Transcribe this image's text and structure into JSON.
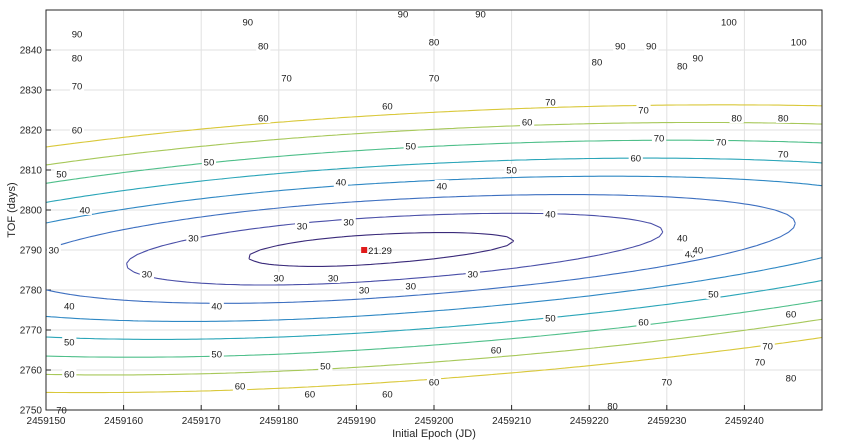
{
  "chart_data": {
    "type": "contour",
    "xlabel": "Initial Epoch (JD)",
    "ylabel": "TOF (days)",
    "xlim": [
      2459150,
      2459250
    ],
    "ylim": [
      2750,
      2850
    ],
    "x_ticks": [
      "2459150",
      "2459160",
      "2459170",
      "2459180",
      "2459190",
      "2459200",
      "2459210",
      "2459220",
      "2459230",
      "2459240"
    ],
    "y_ticks": [
      "2750",
      "2760",
      "2770",
      "2780",
      "2790",
      "2800",
      "2810",
      "2820",
      "2830",
      "2840"
    ],
    "grid": true,
    "levels": [
      30,
      40,
      50,
      60,
      70,
      80,
      90,
      100
    ],
    "level_colors": {
      "30": "#3a2a7a",
      "40": "#4a4fa8",
      "50": "#3d6fc0",
      "60": "#2f88c4",
      "70": "#2aa5b8",
      "80": "#4fbf8a",
      "90": "#a7c85a",
      "100": "#d9c83a"
    },
    "minimum": {
      "x": 2459191,
      "y": 2790,
      "value": 21.29,
      "label": "21.29",
      "marker_color": "#e01b1b"
    },
    "contour_labels": [
      {
        "text": "30",
        "x": 2459151,
        "y": 2790
      },
      {
        "text": "30",
        "x": 2459163,
        "y": 2784
      },
      {
        "text": "30",
        "x": 2459169,
        "y": 2793
      },
      {
        "text": "30",
        "x": 2459183,
        "y": 2796
      },
      {
        "text": "30",
        "x": 2459189,
        "y": 2797
      },
      {
        "text": "30",
        "x": 2459180,
        "y": 2783
      },
      {
        "text": "30",
        "x": 2459187,
        "y": 2783
      },
      {
        "text": "30",
        "x": 2459197,
        "y": 2781
      },
      {
        "text": "30",
        "x": 2459191,
        "y": 2780
      },
      {
        "text": "30",
        "x": 2459205,
        "y": 2784
      },
      {
        "text": "40",
        "x": 2459155,
        "y": 2800
      },
      {
        "text": "40",
        "x": 2459188,
        "y": 2807
      },
      {
        "text": "40",
        "x": 2459201,
        "y": 2806
      },
      {
        "text": "40",
        "x": 2459153,
        "y": 2776
      },
      {
        "text": "40",
        "x": 2459172,
        "y": 2776
      },
      {
        "text": "40",
        "x": 2459215,
        "y": 2799
      },
      {
        "text": "40",
        "x": 2459232,
        "y": 2793
      },
      {
        "text": "40",
        "x": 2459233,
        "y": 2789
      },
      {
        "text": "40",
        "x": 2459234,
        "y": 2790
      },
      {
        "text": "50",
        "x": 2459152,
        "y": 2809
      },
      {
        "text": "50",
        "x": 2459171,
        "y": 2812
      },
      {
        "text": "50",
        "x": 2459197,
        "y": 2816
      },
      {
        "text": "50",
        "x": 2459210,
        "y": 2810
      },
      {
        "text": "50",
        "x": 2459153,
        "y": 2767
      },
      {
        "text": "50",
        "x": 2459172,
        "y": 2764
      },
      {
        "text": "50",
        "x": 2459186,
        "y": 2761
      },
      {
        "text": "50",
        "x": 2459215,
        "y": 2773
      },
      {
        "text": "50",
        "x": 2459236,
        "y": 2779
      },
      {
        "text": "60",
        "x": 2459154,
        "y": 2820
      },
      {
        "text": "60",
        "x": 2459178,
        "y": 2823
      },
      {
        "text": "60",
        "x": 2459194,
        "y": 2826
      },
      {
        "text": "60",
        "x": 2459212,
        "y": 2822
      },
      {
        "text": "60",
        "x": 2459226,
        "y": 2813
      },
      {
        "text": "60",
        "x": 2459153,
        "y": 2759
      },
      {
        "text": "60",
        "x": 2459175,
        "y": 2756
      },
      {
        "text": "60",
        "x": 2459184,
        "y": 2754
      },
      {
        "text": "60",
        "x": 2459194,
        "y": 2754
      },
      {
        "text": "60",
        "x": 2459200,
        "y": 2757
      },
      {
        "text": "60",
        "x": 2459208,
        "y": 2765
      },
      {
        "text": "60",
        "x": 2459227,
        "y": 2772
      },
      {
        "text": "60",
        "x": 2459246,
        "y": 2774
      },
      {
        "text": "70",
        "x": 2459154,
        "y": 2831
      },
      {
        "text": "70",
        "x": 2459181,
        "y": 2833
      },
      {
        "text": "70",
        "x": 2459200,
        "y": 2833
      },
      {
        "text": "70",
        "x": 2459215,
        "y": 2827
      },
      {
        "text": "70",
        "x": 2459227,
        "y": 2825
      },
      {
        "text": "70",
        "x": 2459229,
        "y": 2818
      },
      {
        "text": "70",
        "x": 2459237,
        "y": 2817
      },
      {
        "text": "70",
        "x": 2459245,
        "y": 2814
      },
      {
        "text": "70",
        "x": 2459152,
        "y": 2750
      },
      {
        "text": "70",
        "x": 2459230,
        "y": 2757
      },
      {
        "text": "70",
        "x": 2459242,
        "y": 2762
      },
      {
        "text": "70",
        "x": 2459243,
        "y": 2766
      },
      {
        "text": "80",
        "x": 2459154,
        "y": 2838
      },
      {
        "text": "80",
        "x": 2459178,
        "y": 2841
      },
      {
        "text": "80",
        "x": 2459200,
        "y": 2842
      },
      {
        "text": "80",
        "x": 2459221,
        "y": 2837
      },
      {
        "text": "80",
        "x": 2459232,
        "y": 2836
      },
      {
        "text": "80",
        "x": 2459239,
        "y": 2823
      },
      {
        "text": "80",
        "x": 2459245,
        "y": 2823
      },
      {
        "text": "80",
        "x": 2459223,
        "y": 2751
      },
      {
        "text": "80",
        "x": 2459246,
        "y": 2758
      },
      {
        "text": "90",
        "x": 2459154,
        "y": 2844
      },
      {
        "text": "90",
        "x": 2459176,
        "y": 2847
      },
      {
        "text": "90",
        "x": 2459196,
        "y": 2849
      },
      {
        "text": "90",
        "x": 2459206,
        "y": 2849
      },
      {
        "text": "90",
        "x": 2459224,
        "y": 2841
      },
      {
        "text": "90",
        "x": 2459234,
        "y": 2838
      },
      {
        "text": "90",
        "x": 2459228,
        "y": 2841
      },
      {
        "text": "100",
        "x": 2459238,
        "y": 2847
      },
      {
        "text": "100",
        "x": 2459247,
        "y": 2842
      }
    ]
  }
}
